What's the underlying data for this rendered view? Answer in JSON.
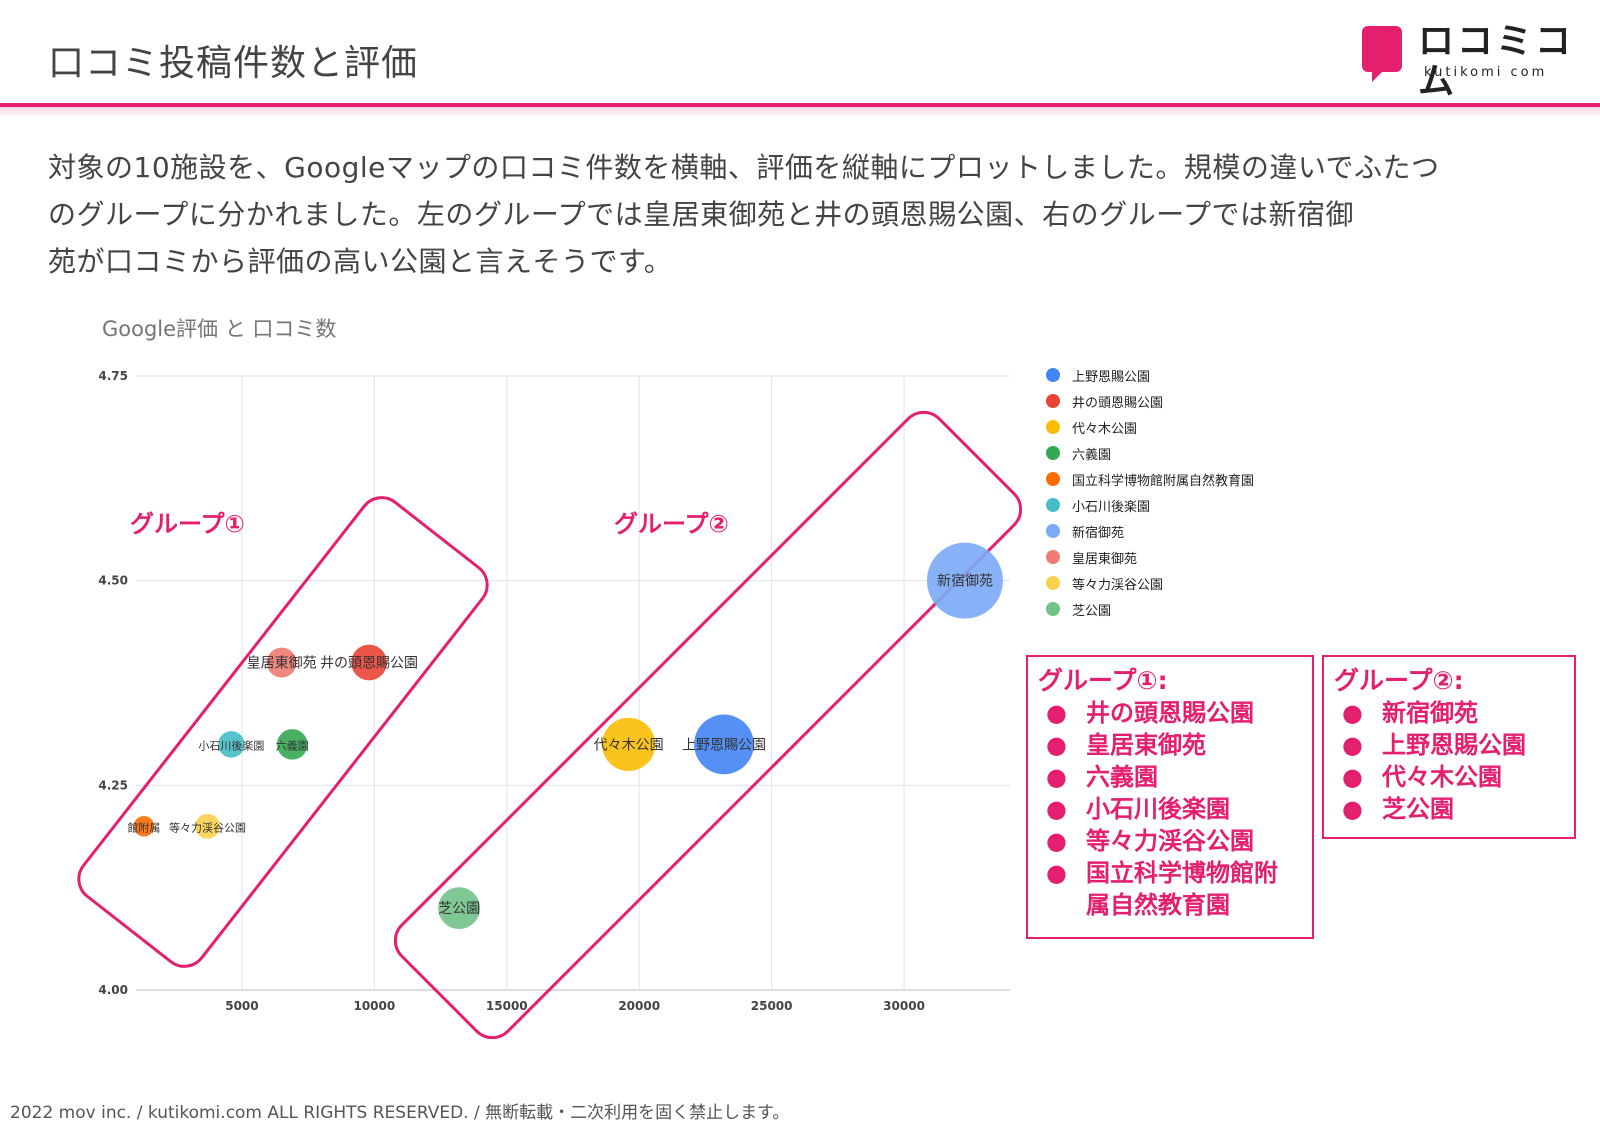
{
  "header": {
    "title": "口コミ投稿件数と評価",
    "logo_text": "ロコミコム",
    "logo_sub": "kutikomi com"
  },
  "description": {
    "lines": [
      "対象の10施設を、Googleマップの口コミ件数を横軸、評価を縦軸にプロットしました。規模の違いでふたつ",
      "のグループに分かれました。左のグループでは皇居東御苑と井の頭恩賜公園、右のグループでは新宿御",
      "苑が口コミから評価の高い公園と言えそうです。"
    ]
  },
  "chart_data": {
    "type": "scatter",
    "title": "Google評価 と 口コミ数",
    "xlabel": "",
    "ylabel": "",
    "xlim": [
      1000,
      34000
    ],
    "ylim": [
      4.0,
      4.75
    ],
    "x_ticks": [
      5000,
      10000,
      15000,
      20000,
      25000,
      30000
    ],
    "y_ticks": [
      4.0,
      4.25,
      4.5,
      4.75
    ],
    "y_tick_labels": [
      "4.00",
      "4.25",
      "4.50",
      "4.75"
    ],
    "grid": true,
    "legend_position": "right",
    "series": [
      {
        "name": "上野恩賜公園",
        "x": 23200,
        "y": 4.3,
        "color": "#4285f4",
        "label": "上野恩賜公園"
      },
      {
        "name": "井の頭恩賜公園",
        "x": 9800,
        "y": 4.4,
        "color": "#ea4335",
        "label": "井の頭恩賜公園"
      },
      {
        "name": "代々木公園",
        "x": 19600,
        "y": 4.3,
        "color": "#fbbc04",
        "label": "代々木公園"
      },
      {
        "name": "六義園",
        "x": 6900,
        "y": 4.3,
        "color": "#34a853",
        "label": "六義園"
      },
      {
        "name": "国立科学博物館附属自然教育園",
        "x": 1300,
        "y": 4.2,
        "color": "#ff6d01",
        "label": "館附属"
      },
      {
        "name": "小石川後楽園",
        "x": 4600,
        "y": 4.3,
        "color": "#46bdc6",
        "label": "小石川後楽園"
      },
      {
        "name": "新宿御苑",
        "x": 32300,
        "y": 4.5,
        "color": "#7baaf7",
        "label": "新宿御苑"
      },
      {
        "name": "皇居東御苑",
        "x": 6500,
        "y": 4.4,
        "color": "#f07b72",
        "label": "皇居東御苑"
      },
      {
        "name": "等々力渓谷公園",
        "x": 3700,
        "y": 4.2,
        "color": "#fcd04f",
        "label": "等々力渓谷公園"
      },
      {
        "name": "芝公園",
        "x": 13200,
        "y": 4.1,
        "color": "#71c287",
        "label": "芝公園"
      }
    ],
    "annotations": [
      "グループ①",
      "グループ②"
    ]
  },
  "group_boxes": [
    {
      "title": "グループ①:",
      "bullet": "●",
      "items": [
        "井の頭恩賜公園",
        "皇居東御苑",
        "六義園",
        "小石川後楽園",
        "等々力渓谷公園",
        "国立科学博物館附",
        "属自然教育園"
      ]
    },
    {
      "title": "グループ②:",
      "bullet": "●",
      "items": [
        "新宿御苑",
        "上野恩賜公園",
        "代々木公園",
        "芝公園"
      ]
    }
  ],
  "footer": "2022 mov inc. / kutikomi.com ALL RIGHTS RESERVED. / 無断転載・二次利用を固く禁止します。",
  "colors": {
    "accent": "#e41f6e"
  }
}
